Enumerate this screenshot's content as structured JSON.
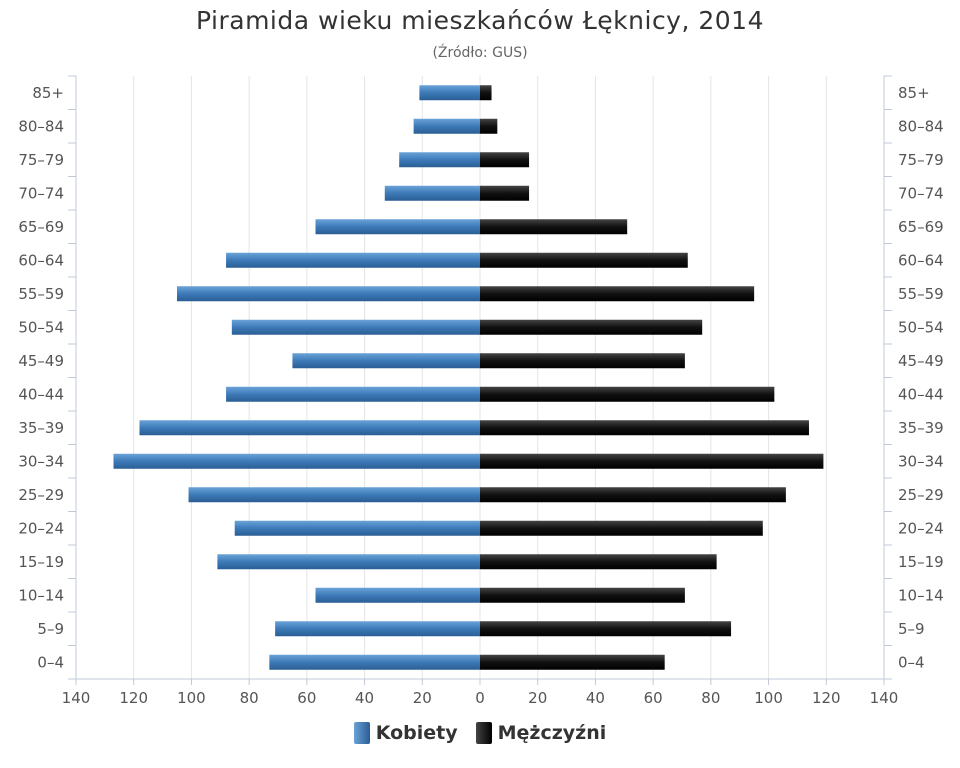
{
  "chart_data": {
    "type": "bar",
    "orientation": "horizontal",
    "title": "Piramida wieku mieszkańców Łęknicy, 2014",
    "subtitle": "(Źródło: GUS)",
    "categories": [
      "85+",
      "80-84",
      "75-79",
      "70-74",
      "65-69",
      "60-64",
      "55-59",
      "50-54",
      "45-49",
      "40-44",
      "35-39",
      "30-34",
      "25-29",
      "20-24",
      "15-19",
      "10-14",
      "5-9",
      "0-4"
    ],
    "series": [
      {
        "name": "Kobiety",
        "color": "#3d7ab8",
        "values": [
          21,
          23,
          28,
          33,
          57,
          88,
          105,
          86,
          65,
          88,
          118,
          127,
          101,
          85,
          91,
          57,
          71,
          73
        ]
      },
      {
        "name": "Mężczyźni",
        "color": "#111111",
        "values": [
          4,
          6,
          17,
          17,
          51,
          72,
          95,
          77,
          71,
          102,
          114,
          119,
          106,
          98,
          82,
          71,
          87,
          64
        ]
      }
    ],
    "xlim": [
      -140,
      140
    ],
    "xticks": [
      "140",
      "120",
      "100",
      "80",
      "60",
      "40",
      "20",
      "0",
      "20",
      "40",
      "60",
      "80",
      "100",
      "120",
      "140"
    ],
    "legend_position": "bottom-center",
    "grid": true
  }
}
